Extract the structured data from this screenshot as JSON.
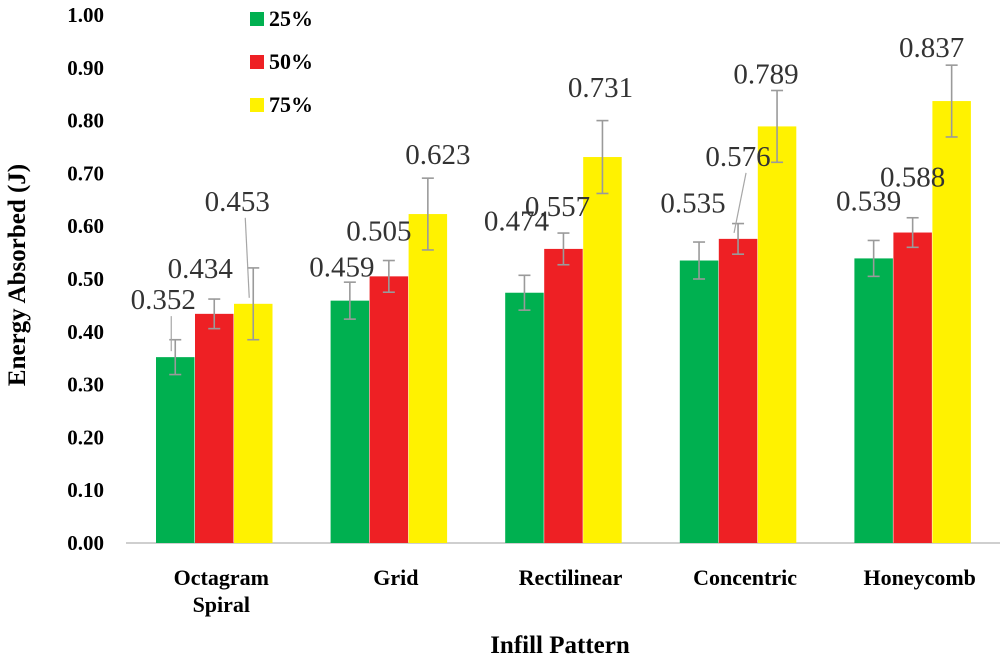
{
  "chart_data": {
    "type": "bar",
    "title": "",
    "xlabel": "Infill Pattern",
    "ylabel": "Energy Absorbed (J)",
    "ylim": [
      0,
      1.0
    ],
    "yticks": [
      "0.00",
      "0.10",
      "0.20",
      "0.30",
      "0.40",
      "0.50",
      "0.60",
      "0.70",
      "0.80",
      "0.90",
      "1.00"
    ],
    "categories": [
      [
        "Octagram",
        "Spiral"
      ],
      [
        "Grid"
      ],
      [
        "Rectilinear"
      ],
      [
        "Concentric"
      ],
      [
        "Honeycomb"
      ]
    ],
    "series": [
      {
        "name": "25%",
        "color": "#00b050",
        "values": [
          0.352,
          0.459,
          0.474,
          0.535,
          0.539
        ],
        "errors": [
          0.033,
          0.035,
          0.033,
          0.035,
          0.034
        ],
        "labels": [
          "0.352",
          "0.459",
          "0.474",
          "0.535",
          "0.539"
        ]
      },
      {
        "name": "50%",
        "color": "#ee2024",
        "values": [
          0.434,
          0.505,
          0.557,
          0.576,
          0.588
        ],
        "errors": [
          0.028,
          0.03,
          0.03,
          0.029,
          0.028
        ],
        "labels": [
          "0.434",
          "0.505",
          "0.557",
          "0.576",
          "0.588"
        ]
      },
      {
        "name": "75%",
        "color": "#fff200",
        "values": [
          0.453,
          0.623,
          0.731,
          0.789,
          0.837
        ],
        "errors": [
          0.068,
          0.068,
          0.069,
          0.068,
          0.068
        ],
        "labels": [
          "0.453",
          "0.623",
          "0.731",
          "0.789",
          "0.837"
        ]
      }
    ],
    "legend": {
      "position": "top-left",
      "entries": [
        "25%",
        "50%",
        "75%"
      ]
    },
    "grid": false
  }
}
